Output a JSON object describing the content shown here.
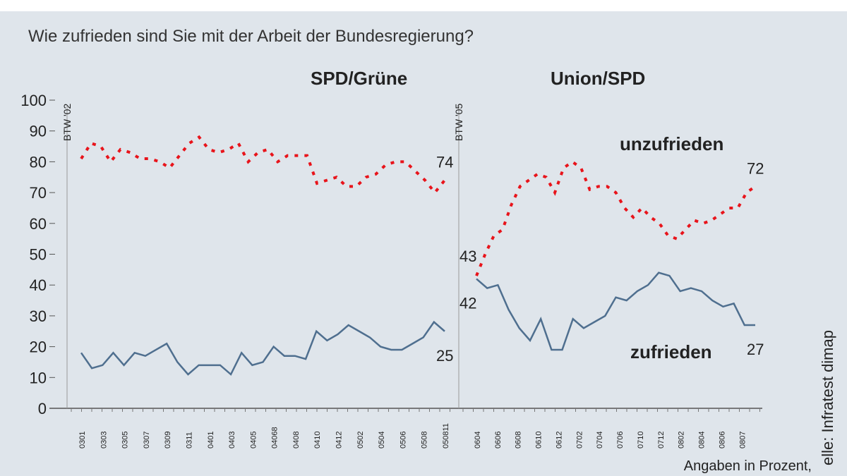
{
  "question": "Wie zufrieden sind Sie mit der Arbeit der Bundesregierung?",
  "source": "elle: Infratest dimap",
  "unit_note": "Angaben in Prozent,",
  "chart_data": {
    "type": "line",
    "ylim": [
      0,
      100
    ],
    "yticks": [
      0,
      10,
      20,
      30,
      40,
      50,
      60,
      70,
      80,
      90,
      100
    ],
    "grid": false,
    "colors": {
      "unzufrieden": "#e8141b",
      "zufrieden": "#4f6f8f"
    },
    "panels": [
      {
        "title": "SPD/Grüne",
        "marker": "BTW '02",
        "xticks": [
          "0301",
          "0303",
          "0305",
          "0307",
          "0309",
          "0311",
          "0401",
          "0403",
          "0405",
          "04068",
          "0408",
          "0410",
          "0412",
          "0502",
          "0504",
          "0506",
          "0508",
          "050811"
        ],
        "series": [
          {
            "name": "unzufrieden",
            "style": "dotted",
            "end_label": "74",
            "values": [
              81,
              86,
              85,
              80,
              84,
              83,
              81,
              81,
              80,
              78,
              82,
              86,
              88,
              84,
              83,
              84,
              86,
              80,
              83,
              84,
              80,
              82,
              82,
              82,
              73,
              74,
              75,
              72,
              72,
              75,
              76,
              79,
              80,
              80,
              77,
              74,
              70,
              74
            ]
          },
          {
            "name": "zufrieden",
            "style": "solid",
            "end_label": "25",
            "values": [
              18,
              13,
              14,
              18,
              14,
              18,
              17,
              19,
              21,
              15,
              11,
              14,
              14,
              14,
              11,
              18,
              14,
              15,
              20,
              17,
              17,
              16,
              25,
              22,
              24,
              27,
              25,
              23,
              20,
              19,
              19,
              21,
              23,
              28,
              25
            ]
          }
        ]
      },
      {
        "title": "Union/SPD",
        "marker": "BTW '05",
        "xticks": [
          "0604",
          "0606",
          "0608",
          "0610",
          "0612",
          "0702",
          "0704",
          "0706",
          "0710",
          "0712",
          "0802",
          "0804",
          "0806",
          "0807"
        ],
        "series": [
          {
            "name": "unzufrieden",
            "style": "dotted",
            "start_label": "43",
            "end_label": "72",
            "values": [
              43,
              50,
              56,
              58,
              66,
              72,
              74,
              76,
              75,
              70,
              78,
              80,
              78,
              71,
              72,
              72,
              70,
              65,
              62,
              65,
              62,
              60,
              56,
              55,
              58,
              61,
              60,
              61,
              63,
              65,
              65,
              70,
              72
            ]
          },
          {
            "name": "zufrieden",
            "style": "solid",
            "start_label": "42",
            "end_label": "27",
            "values": [
              42,
              39,
              40,
              32,
              26,
              22,
              29,
              19,
              19,
              29,
              26,
              28,
              30,
              36,
              35,
              38,
              40,
              44,
              43,
              38,
              39,
              38,
              35,
              33,
              34,
              27,
              27
            ]
          }
        ]
      }
    ],
    "annotations": {
      "unzufrieden": "unzufrieden",
      "zufrieden": "zufrieden"
    }
  }
}
